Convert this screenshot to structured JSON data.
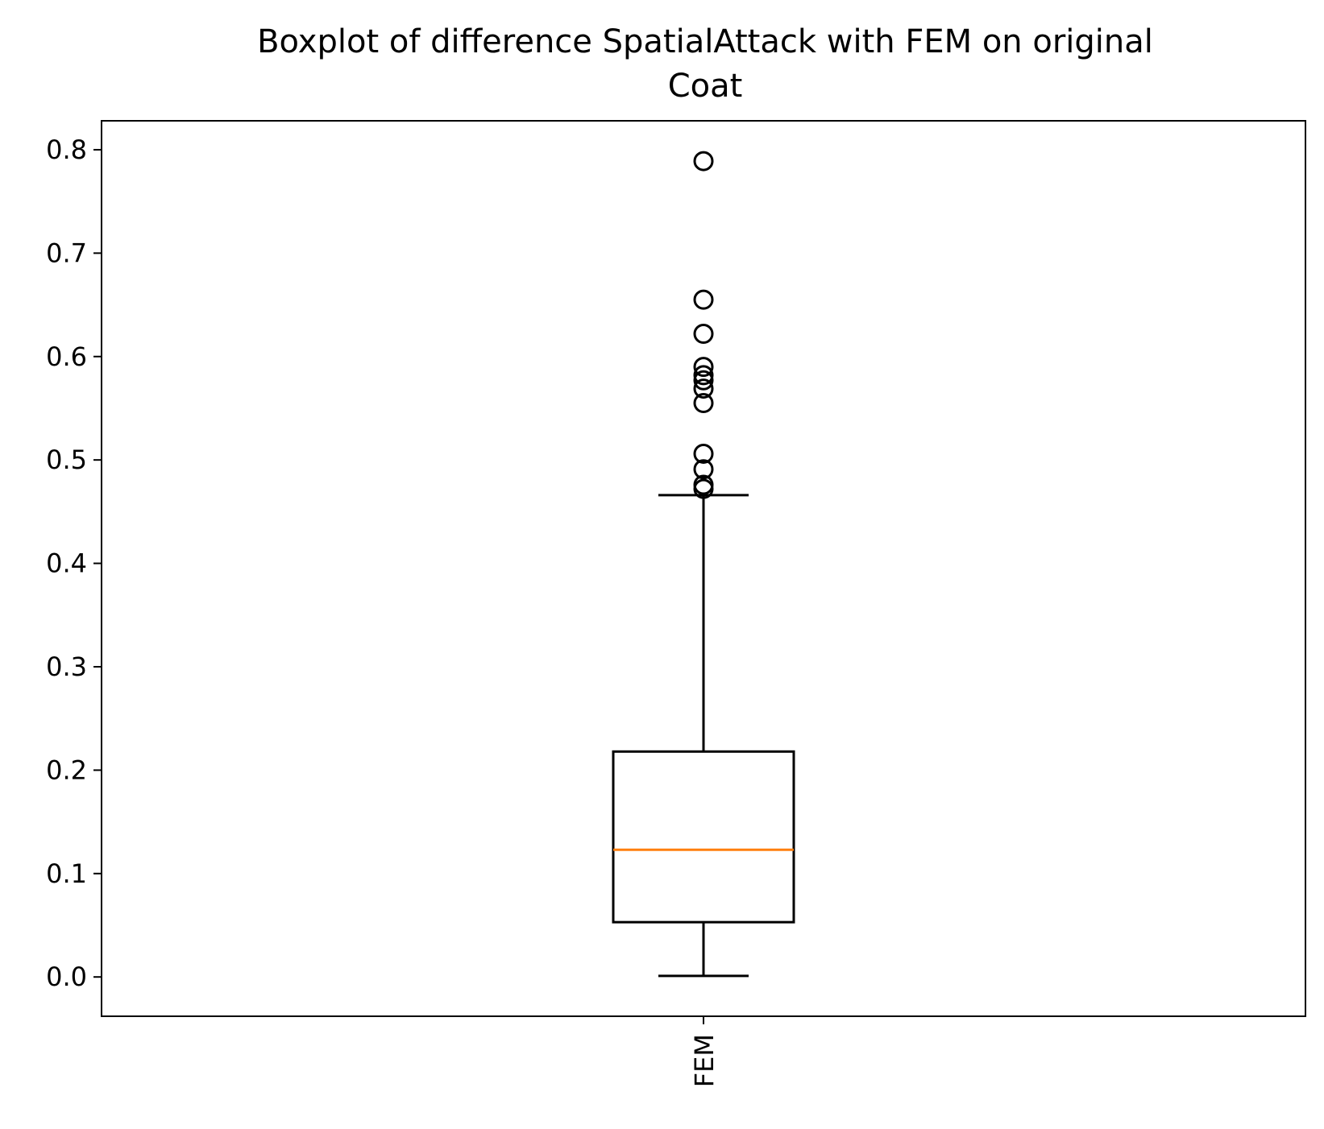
{
  "chart_data": {
    "type": "box",
    "title_lines": [
      "Boxplot of difference SpatialAttack with FEM on original",
      "Coat"
    ],
    "xlabel": "",
    "ylabel": "",
    "categories": [
      "FEM"
    ],
    "ylim": [
      -0.038,
      0.828
    ],
    "yticks": [
      0.0,
      0.1,
      0.2,
      0.3,
      0.4,
      0.5,
      0.6,
      0.7,
      0.8
    ],
    "ytick_labels": [
      "0.0",
      "0.1",
      "0.2",
      "0.3",
      "0.4",
      "0.5",
      "0.6",
      "0.7",
      "0.8"
    ],
    "grid": false,
    "boxes": [
      {
        "name": "FEM",
        "whisker_low": 0.001,
        "q1": 0.053,
        "median": 0.123,
        "q3": 0.218,
        "whisker_high": 0.466,
        "outliers": [
          0.789,
          0.655,
          0.622,
          0.59,
          0.582,
          0.577,
          0.569,
          0.555,
          0.506,
          0.491,
          0.476,
          0.472
        ]
      }
    ],
    "colors": {
      "box": "#000000",
      "median": "#ff7f0e",
      "outlier": "#000000"
    }
  }
}
